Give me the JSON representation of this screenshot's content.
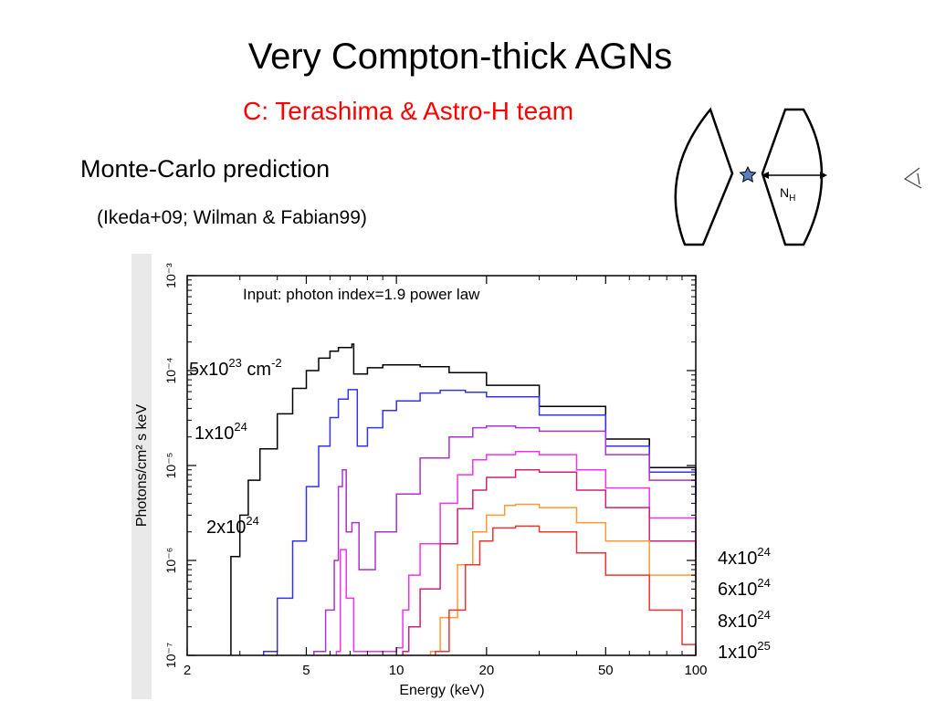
{
  "slide": {
    "title": "Very Compton-thick AGNs",
    "subtitle": "C:  Terashima & Astro-H team",
    "heading": "Monte-Carlo prediction",
    "citation": "(Ikeda+09; Wilman & Fabian99)"
  },
  "diagram": {
    "nh_label": "N",
    "nh_sub": "H",
    "star_color": "#5a7fc0"
  },
  "chart_data": {
    "type": "line",
    "title": "",
    "annotation": "Input: photon index=1.9 power law",
    "xlabel": "Energy (keV)",
    "ylabel": "Photons/cm² s keV",
    "xscale": "log",
    "yscale": "log",
    "xlim": [
      2,
      100
    ],
    "ylim": [
      1e-07,
      0.001
    ],
    "xticks": [
      2,
      5,
      10,
      20,
      50,
      100
    ],
    "yticks": [
      "10⁻⁷",
      "10⁻⁶",
      "10⁻⁵",
      "10⁻⁴",
      "10⁻³"
    ],
    "grid": false,
    "series": [
      {
        "name": "5x10²³ cm⁻²",
        "label_base": "5x10",
        "label_exp": "23",
        "label_unit": " cm",
        "label_unit_exp": "-2",
        "color": "#000000",
        "points": [
          [
            2.8,
            1.1e-06
          ],
          [
            3.0,
            3e-06
          ],
          [
            3.2,
            7e-06
          ],
          [
            3.5,
            1.5e-05
          ],
          [
            4.0,
            3.5e-05
          ],
          [
            4.5,
            6.5e-05
          ],
          [
            5.0,
            0.0001
          ],
          [
            5.5,
            0.000135
          ],
          [
            6.0,
            0.00016
          ],
          [
            6.4,
            0.000175
          ],
          [
            7.1,
            0.00019
          ],
          [
            7.2,
            9.2e-05
          ],
          [
            8.0,
            0.000107
          ],
          [
            9.0,
            0.000115
          ],
          [
            10,
            0.000115
          ],
          [
            12,
            0.00011
          ],
          [
            15,
            9.5e-05
          ],
          [
            20,
            7e-05
          ],
          [
            30,
            4.2e-05
          ],
          [
            50,
            1.9e-05
          ],
          [
            70,
            9.5e-06
          ],
          [
            100,
            4.8e-06
          ]
        ]
      },
      {
        "name": "1x10²⁴",
        "label_base": "1x10",
        "label_exp": "24",
        "color": "#3333ee",
        "points": [
          [
            3.6,
            1.1e-07
          ],
          [
            4.0,
            4e-07
          ],
          [
            4.5,
            1.6e-06
          ],
          [
            5.0,
            6e-06
          ],
          [
            5.5,
            1.6e-05
          ],
          [
            6.0,
            3.2e-05
          ],
          [
            6.4,
            5e-05
          ],
          [
            6.9,
            6.3e-05
          ],
          [
            7.0,
            6.3e-05
          ],
          [
            7.4,
            1.6e-05
          ],
          [
            8.0,
            2.5e-05
          ],
          [
            9.0,
            3.8e-05
          ],
          [
            10,
            4.8e-05
          ],
          [
            12,
            5.8e-05
          ],
          [
            14,
            6.2e-05
          ],
          [
            17,
            5.9e-05
          ],
          [
            20,
            5.3e-05
          ],
          [
            30,
            3.4e-05
          ],
          [
            50,
            1.6e-05
          ],
          [
            70,
            8.5e-06
          ],
          [
            100,
            4e-06
          ]
        ]
      },
      {
        "name": "2x10²⁴",
        "label_base": "2x10",
        "label_exp": "24",
        "color": "#aa33cc",
        "points": [
          [
            5.3,
            1.1e-07
          ],
          [
            5.8,
            3e-07
          ],
          [
            6.2,
            1e-06
          ],
          [
            6.4,
            6e-06
          ],
          [
            6.6,
            9e-06
          ],
          [
            6.8,
            2e-06
          ],
          [
            7.1,
            2.5e-06
          ],
          [
            7.5,
            8e-07
          ],
          [
            8.5,
            2e-06
          ],
          [
            10,
            5e-06
          ],
          [
            12,
            1.2e-05
          ],
          [
            15,
            2e-05
          ],
          [
            18,
            2.5e-05
          ],
          [
            20,
            2.6e-05
          ],
          [
            25,
            2.5e-05
          ],
          [
            30,
            2.3e-05
          ],
          [
            50,
            1.3e-05
          ],
          [
            70,
            7e-06
          ],
          [
            100,
            3.2e-06
          ]
        ]
      },
      {
        "name": "4x10²⁴",
        "label_base": "4x10",
        "label_exp": "24",
        "color": "#ee33ee",
        "points": [
          [
            6.3,
            1.1e-07
          ],
          [
            6.5,
            1.3e-06
          ],
          [
            6.8,
            4e-07
          ],
          [
            7.2,
            1.1e-07
          ],
          [
            10,
            1.2e-07
          ],
          [
            10.5,
            3e-07
          ],
          [
            11,
            7e-07
          ],
          [
            12,
            1.5e-06
          ],
          [
            14,
            4e-06
          ],
          [
            16,
            8e-06
          ],
          [
            18,
            1.15e-05
          ],
          [
            20,
            1.3e-05
          ],
          [
            25,
            1.4e-05
          ],
          [
            30,
            1.3e-05
          ],
          [
            40,
            9e-06
          ],
          [
            50,
            5.8e-06
          ],
          [
            70,
            2.8e-06
          ],
          [
            100,
            1.1e-06
          ]
        ]
      },
      {
        "name": "6x10²⁴",
        "label_base": "6x10",
        "label_exp": "24",
        "color": "#cc2277",
        "points": [
          [
            10.5,
            1.1e-07
          ],
          [
            11,
            2e-07
          ],
          [
            12,
            5e-07
          ],
          [
            14,
            1.5e-06
          ],
          [
            16,
            3.5e-06
          ],
          [
            18,
            5.5e-06
          ],
          [
            20,
            7.5e-06
          ],
          [
            25,
            9e-06
          ],
          [
            30,
            8.5e-06
          ],
          [
            40,
            5.5e-06
          ],
          [
            50,
            3.6e-06
          ],
          [
            70,
            1.6e-06
          ],
          [
            100,
            6e-07
          ]
        ]
      },
      {
        "name": "8x10²⁴",
        "label_base": "8x10",
        "label_exp": "24",
        "color": "#ff9933",
        "points": [
          [
            13,
            1.1e-07
          ],
          [
            14,
            2.5e-07
          ],
          [
            16,
            9e-07
          ],
          [
            18,
            2e-06
          ],
          [
            20,
            3e-06
          ],
          [
            23,
            3.8e-06
          ],
          [
            25,
            3.9e-06
          ],
          [
            30,
            3.6e-06
          ],
          [
            40,
            2.5e-06
          ],
          [
            50,
            1.6e-06
          ],
          [
            70,
            7e-07
          ],
          [
            100,
            2.4e-07
          ]
        ]
      },
      {
        "name": "1x10²⁵",
        "label_base": "1x10",
        "label_exp": "25",
        "color": "#ee3333",
        "points": [
          [
            13.5,
            1.1e-07
          ],
          [
            15,
            3e-07
          ],
          [
            17,
            9e-07
          ],
          [
            19,
            1.6e-06
          ],
          [
            21,
            2.2e-06
          ],
          [
            25,
            2.3e-06
          ],
          [
            30,
            2e-06
          ],
          [
            40,
            1.2e-06
          ],
          [
            50,
            7e-07
          ],
          [
            70,
            3e-07
          ],
          [
            90,
            1.3e-07
          ],
          [
            100,
            1e-07
          ]
        ]
      }
    ]
  }
}
